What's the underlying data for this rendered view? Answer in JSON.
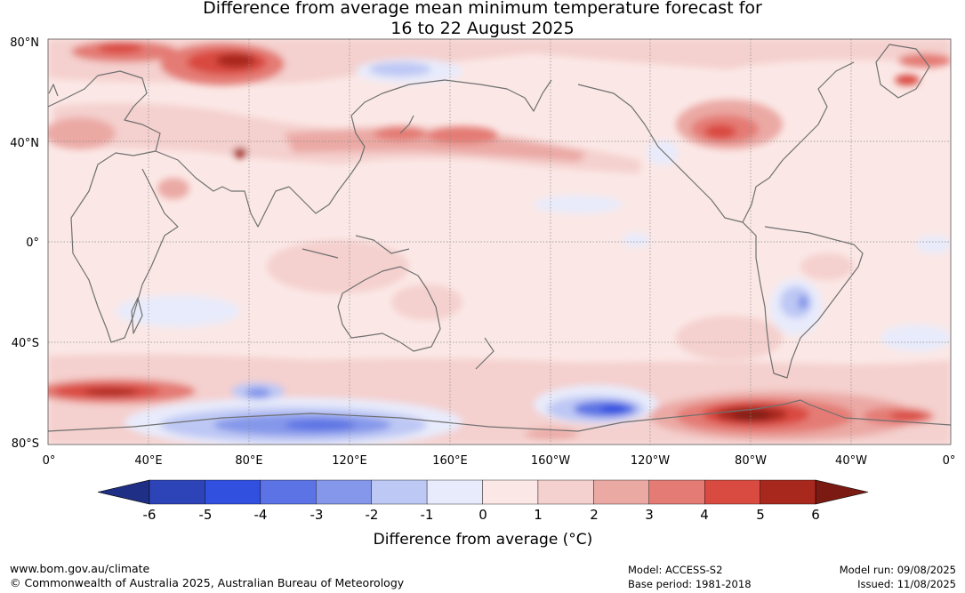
{
  "title_line1": "Difference from average mean minimum temperature forecast for",
  "title_line2": "16 to 22 August 2025",
  "map": {
    "lat_labels": [
      "80°N",
      "40°N",
      "0°",
      "40°S",
      "80°S"
    ],
    "lon_labels": [
      "0°",
      "40°E",
      "80°E",
      "120°E",
      "160°E",
      "160°W",
      "120°W",
      "80°W",
      "40°W",
      "0°"
    ],
    "colors": {
      "ocean_base": "#fbe8e6",
      "coast": "#707070",
      "grid": "#8a8a8a"
    }
  },
  "colorbar": {
    "ticks": [
      "-6",
      "-5",
      "-4",
      "-3",
      "-2",
      "-1",
      "0",
      "1",
      "2",
      "3",
      "4",
      "5",
      "6"
    ],
    "colors": [
      "#1f2f85",
      "#2d44b8",
      "#3150e0",
      "#5b73e4",
      "#8597ea",
      "#bec8f4",
      "#e8ebfb",
      "#fbe8e6",
      "#f4d0ce",
      "#eba9a4",
      "#e47c75",
      "#d94a40",
      "#a8281e",
      "#7a1a12"
    ],
    "label": "Difference from average (°C)"
  },
  "footer": {
    "website": "www.bom.gov.au/climate",
    "copyright": "© Commonwealth of Australia 2025, Australian Bureau of Meteorology",
    "model": "Model: ACCESS-S2",
    "base_period": "Base period: 1981-2018",
    "model_run": "Model run: 09/08/2025",
    "issued": "Issued: 11/08/2025"
  }
}
